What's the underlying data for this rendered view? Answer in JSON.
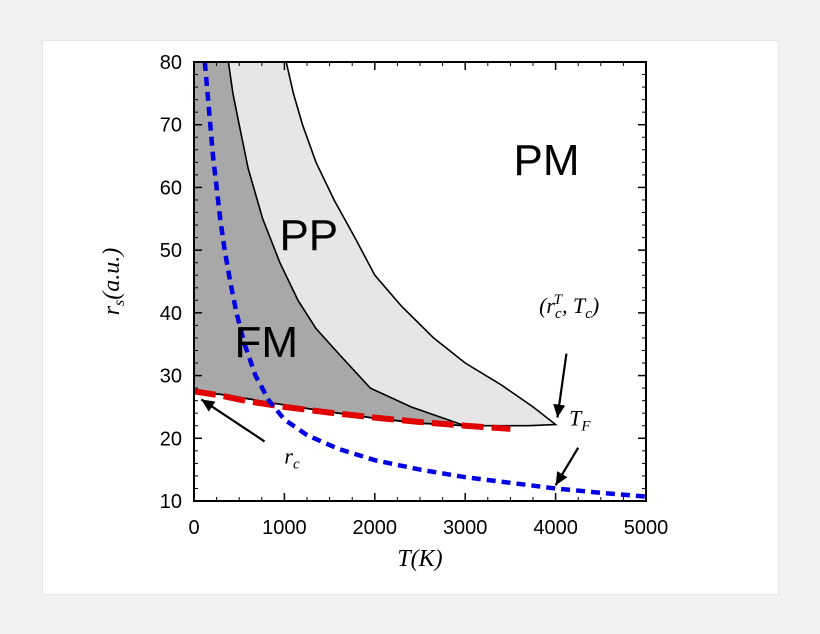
{
  "chart_data": {
    "type": "line",
    "xlabel": "T(K)",
    "ylabel": "r_s(a.u.)",
    "xlim": [
      0,
      5000
    ],
    "ylim": [
      10,
      80
    ],
    "x_ticks": [
      0,
      1000,
      2000,
      3000,
      4000,
      5000
    ],
    "y_ticks": [
      10,
      20,
      30,
      40,
      50,
      60,
      70,
      80
    ],
    "regions": [
      {
        "name": "PM",
        "color": "#ffffff"
      },
      {
        "name": "PP",
        "color": "#e6e6e6"
      },
      {
        "name": "FM",
        "color": "#a8a8a8"
      }
    ],
    "series": [
      {
        "name": "PP outer boundary",
        "style": "solid",
        "color": "#000000",
        "points": [
          [
            1020,
            80
          ],
          [
            1100,
            75
          ],
          [
            1200,
            70
          ],
          [
            1350,
            64
          ],
          [
            1550,
            58
          ],
          [
            1780,
            52
          ],
          [
            2000,
            46
          ],
          [
            2300,
            41
          ],
          [
            2650,
            36
          ],
          [
            3000,
            32
          ],
          [
            3400,
            28.5
          ],
          [
            3750,
            25
          ],
          [
            4000,
            22.2
          ],
          [
            3700,
            22
          ],
          [
            3000,
            22
          ],
          [
            2500,
            22.4
          ],
          [
            2000,
            23.2
          ],
          [
            1500,
            24.2
          ],
          [
            1000,
            25.3
          ],
          [
            600,
            26.3
          ],
          [
            300,
            27
          ],
          [
            0,
            27.5
          ]
        ]
      },
      {
        "name": "FM boundary",
        "style": "solid",
        "color": "#000000",
        "points": [
          [
            380,
            80
          ],
          [
            430,
            75
          ],
          [
            500,
            70
          ],
          [
            600,
            63
          ],
          [
            760,
            55
          ],
          [
            950,
            48
          ],
          [
            1150,
            42
          ],
          [
            1350,
            37.5
          ],
          [
            1600,
            33.5
          ],
          [
            1950,
            28
          ],
          [
            2400,
            25
          ],
          [
            3000,
            22
          ],
          [
            2500,
            22.4
          ],
          [
            2000,
            23.2
          ],
          [
            1500,
            24.2
          ],
          [
            1000,
            25.3
          ],
          [
            600,
            26.3
          ],
          [
            300,
            27
          ],
          [
            0,
            27.5
          ]
        ]
      },
      {
        "name": "r_c",
        "style": "dashed",
        "color": "#e00000",
        "points": [
          [
            0,
            27.5
          ],
          [
            300,
            26.8
          ],
          [
            600,
            25.9
          ],
          [
            1000,
            25
          ],
          [
            1500,
            24.1
          ],
          [
            2000,
            23.3
          ],
          [
            2500,
            22.6
          ],
          [
            3000,
            22
          ],
          [
            3500,
            21.5
          ]
        ]
      },
      {
        "name": "T_F",
        "style": "dotted",
        "color": "#0000e0",
        "points": [
          [
            120,
            80
          ],
          [
            150,
            75
          ],
          [
            180,
            70
          ],
          [
            210,
            65
          ],
          [
            250,
            60
          ],
          [
            290,
            55
          ],
          [
            340,
            50
          ],
          [
            400,
            45
          ],
          [
            470,
            40
          ],
          [
            560,
            35
          ],
          [
            680,
            30
          ],
          [
            830,
            26
          ],
          [
            1000,
            23
          ],
          [
            1250,
            20.5
          ],
          [
            1600,
            18.3
          ],
          [
            2000,
            16.5
          ],
          [
            2500,
            15
          ],
          [
            3000,
            13.8
          ],
          [
            3500,
            12.9
          ],
          [
            4000,
            12
          ],
          [
            4500,
            11.3
          ],
          [
            5000,
            10.7
          ]
        ]
      }
    ],
    "annotations": [
      {
        "text": "PM",
        "x": 3900,
        "y": 62
      },
      {
        "text": "PP",
        "x": 1270,
        "y": 50
      },
      {
        "text": "FM",
        "x": 800,
        "y": 33
      },
      {
        "text": "(r_c^T, T_c)",
        "text_base": "(r",
        "text_sub": "c",
        "text_sup": "T",
        "text_rest": ", T",
        "text_sub2": "c",
        "text_close": ")",
        "x": 4150,
        "y": 40
      },
      {
        "text": "T_F",
        "text_base": "T",
        "text_sub": "F",
        "x": 4150,
        "y": 22
      },
      {
        "text": "r_c",
        "text_base": "r",
        "text_sub": "c",
        "x": 1000,
        "y": 16
      }
    ]
  }
}
